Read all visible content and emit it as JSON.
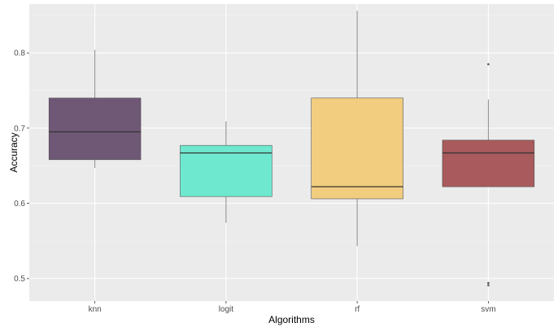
{
  "chart_data": {
    "type": "box",
    "title": "",
    "xlabel": "Algorithms",
    "ylabel": "Accuracy",
    "ylim": [
      0.47,
      0.865
    ],
    "y_ticks": [
      0.5,
      0.6,
      0.7,
      0.8
    ],
    "y_tick_labels": [
      "0.5",
      "0.6",
      "0.7",
      "0.8"
    ],
    "grid": true,
    "legend": "none",
    "panel_background": "#ebebeb",
    "categories": [
      "knn",
      "logit",
      "rf",
      "svm"
    ],
    "boxes": [
      {
        "name": "knn",
        "whisker_low": 0.647,
        "q1": 0.658,
        "median": 0.695,
        "q3": 0.74,
        "whisker_high": 0.804,
        "outliers": [],
        "fill": "#6f5776"
      },
      {
        "name": "logit",
        "whisker_low": 0.574,
        "q1": 0.609,
        "median": 0.667,
        "q3": 0.677,
        "whisker_high": 0.709,
        "outliers": [],
        "fill": "#6ee8cf"
      },
      {
        "name": "rf",
        "whisker_low": 0.543,
        "q1": 0.606,
        "median": 0.622,
        "q3": 0.74,
        "whisker_high": 0.856,
        "outliers": [],
        "fill": "#f2cd7f"
      },
      {
        "name": "svm",
        "whisker_low": 0.622,
        "q1": 0.622,
        "median": 0.667,
        "q3": 0.684,
        "whisker_high": 0.738,
        "outliers": [
          0.785,
          0.494,
          0.491
        ],
        "fill": "#a85a5c"
      }
    ]
  }
}
